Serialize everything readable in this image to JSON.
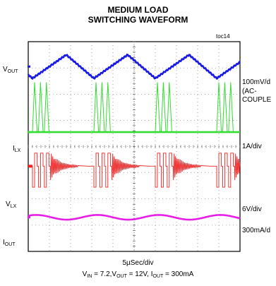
{
  "chart_data": {
    "type": "line",
    "title_line1": "MEDIUM LOAD",
    "title_line2": "SWITCHING WAVEFORM",
    "tag": "toc14",
    "xlabel": "5µSec/div",
    "conditions": {
      "vin_main": "V",
      "vin_sub": "IN",
      "vin_val": " = 7.2,",
      "vout_main": "V",
      "vout_sub": "OUT",
      "vout_val": " = 12V, ",
      "iout_main": "I",
      "iout_sub": "OUT",
      "iout_val": " = 300mA"
    },
    "grid": true,
    "divisions": {
      "x": 10,
      "y": 8
    },
    "traces": [
      {
        "label_main": "V",
        "label_sub": "OUT",
        "scale": "100mV/d",
        "scale_extra": "(AC-\nCOUPLE",
        "color": "#1a1ae6"
      },
      {
        "label_main": "I",
        "label_sub": "LX",
        "scale": "1A/div",
        "scale_extra": "",
        "color": "#33dd33"
      },
      {
        "label_main": "V",
        "label_sub": "LX",
        "scale": "6V/div",
        "scale_extra": "",
        "color": "#ee2222"
      },
      {
        "label_main": "I",
        "label_sub": "OUT",
        "scale": "300mA/d",
        "scale_extra": "",
        "color": "#e61ee6"
      }
    ],
    "switching_period_div": 2.9
  }
}
